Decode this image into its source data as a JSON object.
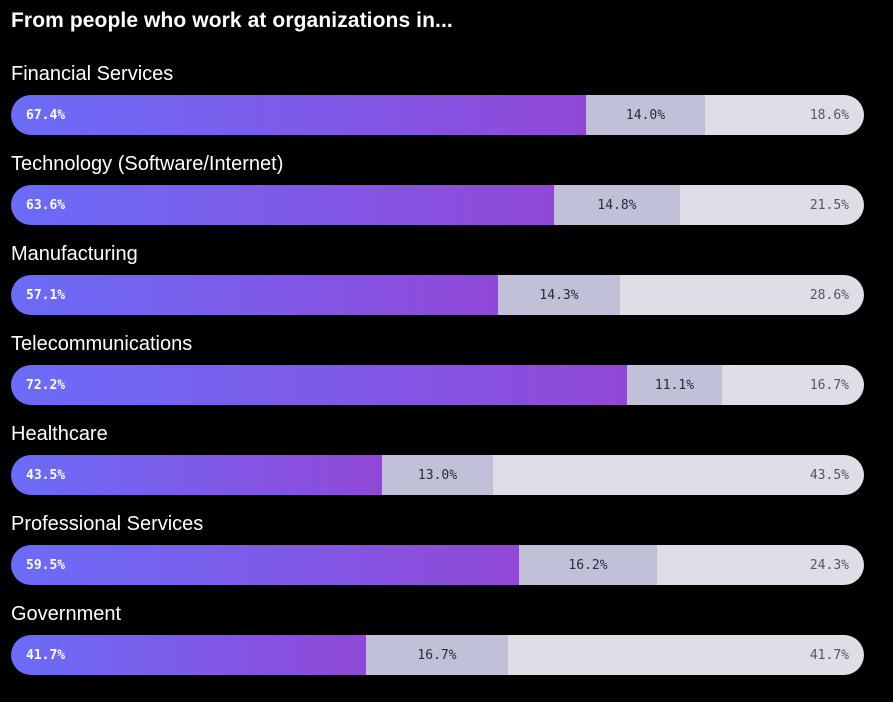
{
  "title": "From people who work at organizations in...",
  "colors": {
    "background": "#000000",
    "segment_a_start": "#6a6cf8",
    "segment_a_end": "#9148d8",
    "segment_b": "#c0c0d8",
    "segment_c": "#e0dde6"
  },
  "chart_data": {
    "type": "bar",
    "stacked": true,
    "orientation": "horizontal",
    "normalized": true,
    "categories": [
      "Financial Services",
      "Technology (Software/Internet)",
      "Manufacturing",
      "Telecommunications",
      "Healthcare",
      "Professional Services",
      "Government"
    ],
    "series": [
      {
        "values": [
          67.4,
          63.6,
          57.1,
          72.2,
          43.5,
          59.5,
          41.7
        ]
      },
      {
        "values": [
          14.0,
          14.8,
          14.3,
          11.1,
          13.0,
          16.2,
          16.7
        ]
      },
      {
        "values": [
          18.6,
          21.5,
          28.6,
          16.7,
          43.5,
          24.3,
          41.7
        ]
      }
    ],
    "data_labels": [
      [
        "67.4%",
        "14.0%",
        "18.6%"
      ],
      [
        "63.6%",
        "14.8%",
        "21.5%"
      ],
      [
        "57.1%",
        "14.3%",
        "28.6%"
      ],
      [
        "72.2%",
        "11.1%",
        "16.7%"
      ],
      [
        "43.5%",
        "13.0%",
        "43.5%"
      ],
      [
        "59.5%",
        "16.2%",
        "24.3%"
      ],
      [
        "41.7%",
        "16.7%",
        "41.7%"
      ]
    ],
    "xlim": [
      0,
      100
    ],
    "grid": false,
    "legend": false
  }
}
